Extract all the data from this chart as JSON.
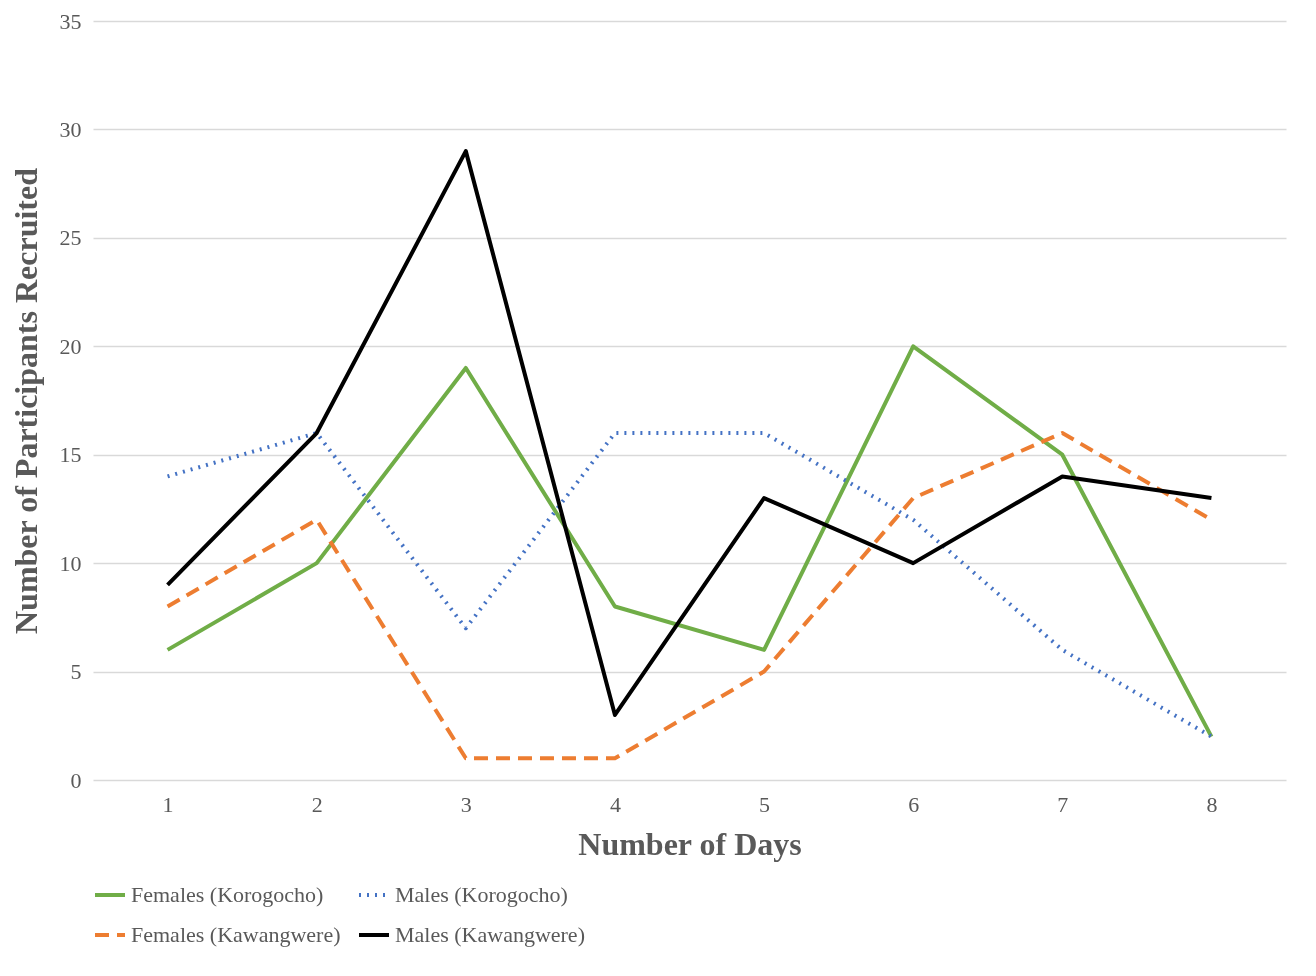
{
  "chart_data": {
    "type": "line",
    "xlabel": "Number of Days",
    "ylabel": "Number of Participants Recruited",
    "categories": [
      "1",
      "2",
      "3",
      "4",
      "5",
      "6",
      "7",
      "8"
    ],
    "series": [
      {
        "name": "Females (Korogocho)",
        "color": "#70ad47",
        "line_style": "solid",
        "values": [
          6,
          10,
          19,
          8,
          6,
          20,
          15,
          2
        ]
      },
      {
        "name": "Males (Korogocho)",
        "color": "#4472c4",
        "line_style": "dotted",
        "values": [
          14,
          16,
          7,
          16,
          16,
          12,
          6,
          2
        ]
      },
      {
        "name": "Females (Kawangwere)",
        "color": "#ed7d31",
        "line_style": "dashed",
        "values": [
          8,
          12,
          1,
          1,
          5,
          13,
          16,
          12
        ]
      },
      {
        "name": "Males (Kawangwere)",
        "color": "#000000",
        "line_style": "solid",
        "values": [
          9,
          16,
          29,
          3,
          13,
          10,
          14,
          13
        ]
      }
    ],
    "ylim": [
      0,
      35
    ],
    "yticks": [
      0,
      5,
      10,
      15,
      20,
      25,
      30,
      35
    ],
    "grid": "y",
    "legend": "bottom",
    "marker": "none"
  }
}
